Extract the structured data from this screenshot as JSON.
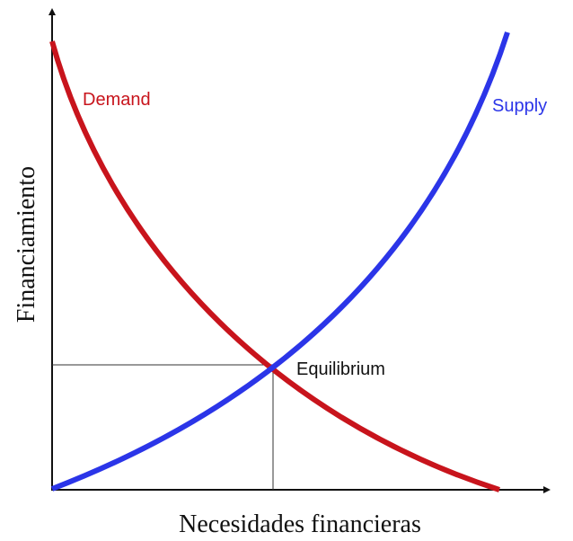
{
  "labels": {
    "demand": "Demand",
    "supply": "Supply",
    "equilibrium": "Equilibrium"
  },
  "axes": {
    "y_label": "Financiamiento",
    "x_label": "Necesidades financieras"
  }
}
